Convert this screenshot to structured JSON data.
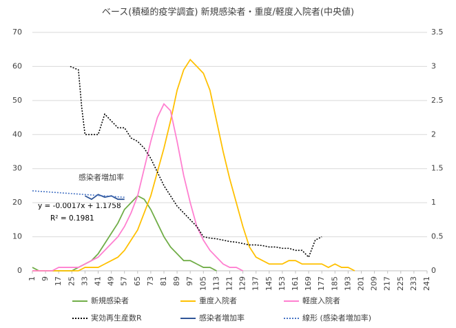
{
  "chart_data": {
    "type": "line",
    "title": "ベース(積極的疫学調査) 新規感染者・重度/軽度入院者(中央値)",
    "annotations": [
      "感染者増加率",
      "y = -0.0017x + 1.1758",
      "R² = 0.1981"
    ],
    "xlim": [
      1,
      241
    ],
    "xticks": [
      1,
      9,
      17,
      25,
      33,
      41,
      49,
      57,
      65,
      73,
      81,
      89,
      97,
      105,
      113,
      121,
      129,
      137,
      145,
      153,
      161,
      169,
      177,
      185,
      193,
      201,
      209,
      217,
      225,
      233,
      241
    ],
    "ylim": [
      0,
      70
    ],
    "yticks": [
      0,
      10,
      20,
      30,
      40,
      50,
      60,
      70
    ],
    "y2lim": [
      0,
      3.5
    ],
    "y2ticks": [
      0,
      0.5,
      1,
      1.5,
      2,
      2.5,
      3,
      3.5
    ],
    "grid": true,
    "legend": "bottom",
    "series": [
      {
        "name": "新規感染者",
        "color": "#70ad47",
        "dash": false,
        "x": [
          1,
          5,
          9,
          13,
          17,
          21,
          25,
          29,
          33,
          37,
          41,
          45,
          49,
          53,
          57,
          61,
          65,
          69,
          73,
          77,
          81,
          85,
          89,
          93,
          97,
          101,
          105,
          109,
          113
        ],
        "values": [
          1,
          0,
          0,
          0,
          0,
          0,
          0,
          1,
          2,
          3,
          5,
          8,
          11,
          14,
          18,
          20,
          22,
          21,
          18,
          14,
          10,
          7,
          5,
          3,
          3,
          2,
          1,
          1,
          0
        ]
      },
      {
        "name": "重度入院者",
        "color": "#ffc000",
        "dash": false,
        "x": [
          1,
          5,
          9,
          13,
          17,
          21,
          25,
          29,
          33,
          37,
          41,
          45,
          49,
          53,
          57,
          61,
          65,
          69,
          73,
          77,
          81,
          85,
          89,
          93,
          97,
          101,
          105,
          109,
          113,
          117,
          121,
          125,
          129,
          133,
          137,
          141,
          145,
          149,
          153,
          157,
          161,
          165,
          169,
          173,
          177,
          181,
          185,
          189,
          193,
          197
        ],
        "values": [
          0,
          0,
          0,
          0,
          0,
          0,
          0,
          0,
          1,
          1,
          1,
          2,
          3,
          4,
          6,
          9,
          12,
          17,
          22,
          29,
          36,
          44,
          53,
          59,
          62,
          60,
          58,
          53,
          44,
          35,
          27,
          20,
          13,
          7,
          4,
          3,
          2,
          2,
          2,
          3,
          3,
          2,
          2,
          2,
          2,
          1,
          2,
          1,
          1,
          0
        ]
      },
      {
        "name": "軽度入院者",
        "color": "#ff7fd0",
        "dash": false,
        "x": [
          1,
          5,
          9,
          13,
          17,
          21,
          25,
          29,
          33,
          37,
          41,
          45,
          49,
          53,
          57,
          61,
          65,
          69,
          73,
          77,
          81,
          85,
          89,
          93,
          97,
          101,
          105,
          109,
          113,
          117,
          121,
          125,
          129
        ],
        "values": [
          0,
          0,
          0,
          0,
          1,
          1,
          1,
          1,
          2,
          3,
          4,
          6,
          8,
          10,
          13,
          17,
          22,
          30,
          38,
          45,
          49,
          47,
          38,
          28,
          20,
          13,
          9,
          6,
          4,
          2,
          1,
          1,
          0
        ]
      },
      {
        "name": "実効再生産数R",
        "color": "#000000",
        "dash": true,
        "axis": "y2",
        "x": [
          24,
          29,
          31,
          33,
          37,
          41,
          45,
          49,
          53,
          57,
          61,
          65,
          69,
          73,
          77,
          81,
          85,
          89,
          93,
          97,
          101,
          105,
          109,
          113,
          117,
          121,
          125,
          129,
          133,
          137,
          141,
          145,
          149,
          153,
          157,
          161,
          165,
          169,
          173,
          177
        ],
        "values": [
          3,
          2.95,
          2.4,
          2,
          2,
          2,
          2.3,
          2.2,
          2.1,
          2.1,
          1.95,
          1.9,
          1.8,
          1.65,
          1.45,
          1.25,
          1.1,
          0.95,
          0.85,
          0.75,
          0.65,
          0.5,
          0.48,
          0.47,
          0.45,
          0.43,
          0.42,
          0.4,
          0.38,
          0.38,
          0.37,
          0.35,
          0.35,
          0.33,
          0.33,
          0.3,
          0.3,
          0.2,
          0.45,
          0.5
        ]
      },
      {
        "name": "感染者増加率",
        "color": "#2f5597",
        "dash": false,
        "axis": "y2",
        "x": [
          33,
          37,
          41,
          45,
          49,
          53,
          57
        ],
        "values": [
          1.1,
          1.05,
          1.12,
          1.08,
          1.1,
          1.05,
          1.05
        ]
      },
      {
        "name": "線形 (感染者増加率)",
        "color": "#4472c4",
        "dash": true,
        "axis": "y2",
        "x": [
          1,
          57
        ],
        "values": [
          1.174,
          1.079
        ]
      }
    ]
  }
}
